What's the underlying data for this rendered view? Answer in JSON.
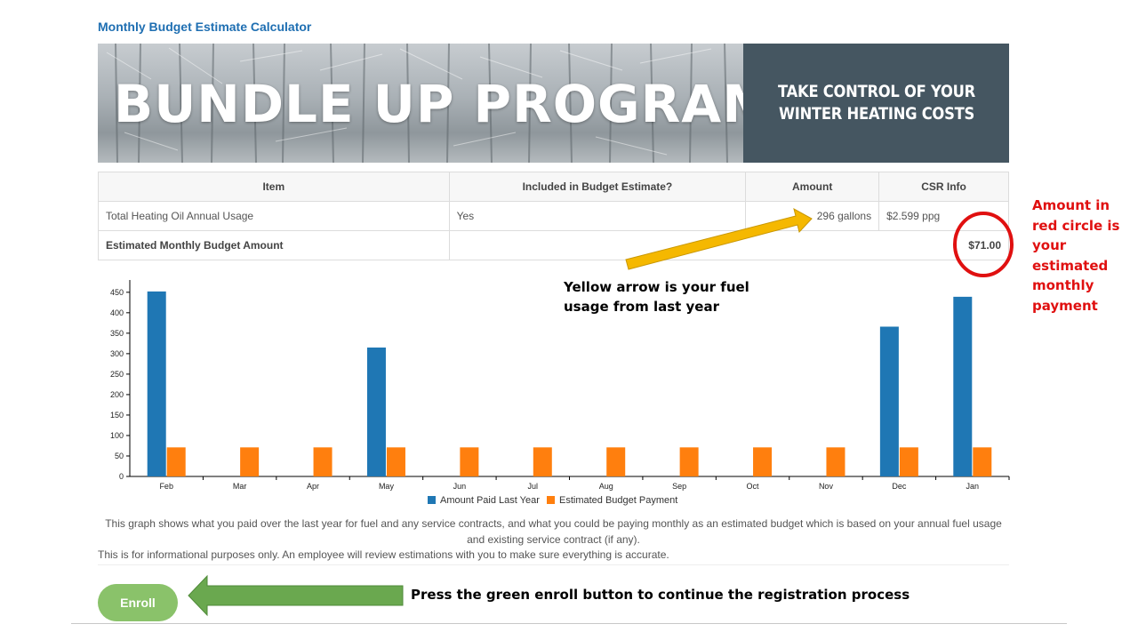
{
  "page": {
    "title": "Monthly Budget Estimate Calculator"
  },
  "banner": {
    "heading": "BUNDLE UP PROGRAM",
    "tagline": "TAKE CONTROL OF YOUR WINTER HEATING COSTS",
    "side_color": "#455661"
  },
  "table": {
    "headers": [
      "Item",
      "Included in Budget Estimate?",
      "Amount",
      "CSR Info"
    ],
    "rows": [
      {
        "item": "Total Heating Oil Annual Usage",
        "included": "Yes",
        "amount": "296 gallons",
        "csr_info": "$2.599 ppg"
      }
    ],
    "summary": {
      "label": "Estimated Monthly Budget Amount",
      "value": "$71.00"
    }
  },
  "chart_data": {
    "type": "bar",
    "categories": [
      "Feb",
      "Mar",
      "Apr",
      "May",
      "Jun",
      "Jul",
      "Aug",
      "Sep",
      "Oct",
      "Nov",
      "Dec",
      "Jan"
    ],
    "series": [
      {
        "name": "Amount Paid Last Year",
        "color": "#1f77b4",
        "values": [
          452,
          0,
          0,
          315,
          0,
          0,
          0,
          0,
          0,
          0,
          366,
          439
        ]
      },
      {
        "name": "Estimated Budget Payment",
        "color": "#ff7f0e",
        "values": [
          71,
          71,
          71,
          71,
          71,
          71,
          71,
          71,
          71,
          71,
          71,
          71
        ]
      }
    ],
    "yticks": [
      0,
      50,
      100,
      150,
      200,
      250,
      300,
      350,
      400,
      450
    ],
    "ylim": [
      0,
      480
    ],
    "legend": "bottom-center",
    "grid": false,
    "title": "",
    "xlabel": "",
    "ylabel": ""
  },
  "caption": "This graph shows what you paid over the last year for fuel and any service contracts, and what you could be paying monthly as an estimated budget which is based on your annual fuel usage and existing service contract (if any).",
  "disclaimer": "This is for informational purposes only. An employee will review estimations with you to make sure everything is accurate.",
  "enroll": {
    "label": "Enroll",
    "color": "#8ac26a"
  },
  "annotations": {
    "red_circle_text": "Amount in red circle is your estimated monthly payment",
    "yellow_arrow_text": "Yellow arrow is your fuel usage from last year",
    "green_arrow_text": "Press the green enroll button to continue the registration process",
    "red_color": "#e01010",
    "yellow_color": "#f5b800",
    "green_color": "#6aa84f"
  }
}
